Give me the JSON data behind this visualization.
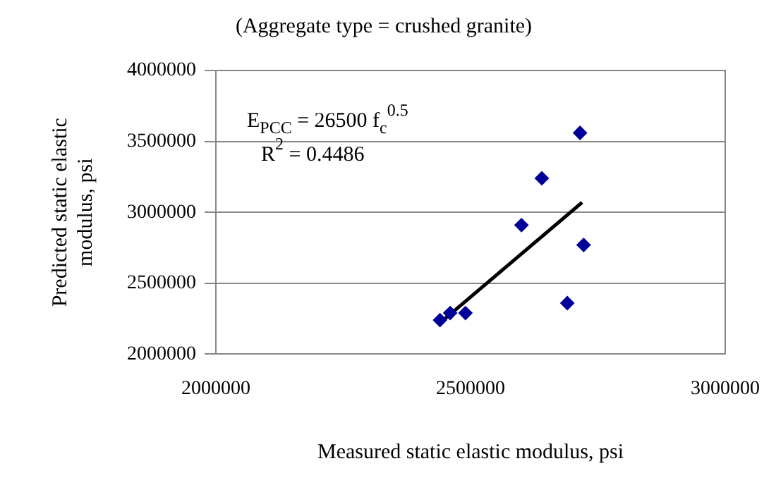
{
  "chart_data": {
    "type": "scatter",
    "title": "(Aggregate type = crushed granite)",
    "xlabel": "Measured static elastic modulus, psi",
    "ylabel": "Predicted static elastic modulus, psi",
    "series": [
      {
        "color": "#000099",
        "x": [
          2440000,
          2460000,
          2490000,
          2600000,
          2640000,
          2690000,
          2715000,
          2722000
        ],
        "values": [
          2240000,
          2290000,
          2290000,
          2910000,
          3240000,
          2360000,
          3560000,
          2770000
        ],
        "marker": "diamond"
      },
      {
        "type": "line",
        "color": "#000000",
        "x": [
          2440000,
          2719000
        ],
        "values": [
          2220000,
          3070000
        ],
        "marker": "none",
        "line_style": "solid"
      }
    ],
    "annotations": [
      "E$_{PCC}$ = 26500 f$_{c}$$^{0.5}$",
      "R$^{2}$ = 0.4486"
    ],
    "xlim": [
      2000000,
      3000000
    ],
    "xticks": [
      2000000,
      2500000,
      3000000
    ],
    "ylim": [
      2000000,
      4000000
    ],
    "yticks": [
      2000000,
      2500000,
      3000000,
      3500000,
      4000000
    ],
    "grid": "y",
    "legend": false
  }
}
